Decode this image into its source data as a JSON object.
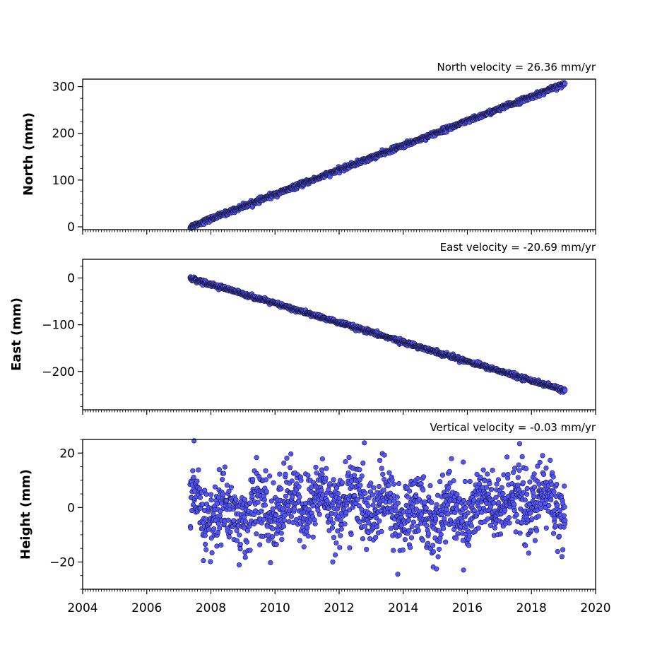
{
  "chart_data": [
    {
      "type": "scatter",
      "title": "North velocity = 26.36 mm/yr",
      "ylabel": "North (mm)",
      "xlim": [
        2004,
        2020
      ],
      "ylim": [
        -6,
        316
      ],
      "yticks": [
        0,
        100,
        200,
        300
      ],
      "xticks": [],
      "trend": {
        "start": 2007.35,
        "end": 2019.05,
        "y_start": 0,
        "y_end": 306,
        "noise": 2.5
      },
      "marker_color": "#5555ff",
      "edge_color": "#1a1a40"
    },
    {
      "type": "scatter",
      "title": "East velocity = -20.69 mm/yr",
      "ylabel": "East (mm)",
      "xlim": [
        2004,
        2020
      ],
      "ylim": [
        -282,
        40
      ],
      "yticks": [
        0,
        -100,
        -200
      ],
      "ytick_labels": [
        "0",
        "−100",
        "−200"
      ],
      "xticks": [],
      "trend": {
        "start": 2007.35,
        "end": 2019.05,
        "y_start": 0,
        "y_end": -241,
        "noise": 2.2
      },
      "marker_color": "#5555ff",
      "edge_color": "#1a1a40"
    },
    {
      "type": "scatter",
      "title": "Vertical velocity = -0.03 mm/yr",
      "ylabel": "Height (mm)",
      "xlim": [
        2004,
        2020
      ],
      "ylim": [
        -30,
        25
      ],
      "yticks": [
        20,
        0,
        -20
      ],
      "ytick_labels": [
        "20",
        "0",
        "−20"
      ],
      "xticks": [
        "2004",
        "2006",
        "2008",
        "2010",
        "2012",
        "2014",
        "2016",
        "2018",
        "2020"
      ],
      "trend": {
        "start": 2007.35,
        "end": 2019.05,
        "y_start": 0,
        "y_end": 0,
        "noise": 6.5
      },
      "marker_color": "#5555ff",
      "edge_color": "#1a1a40"
    }
  ]
}
